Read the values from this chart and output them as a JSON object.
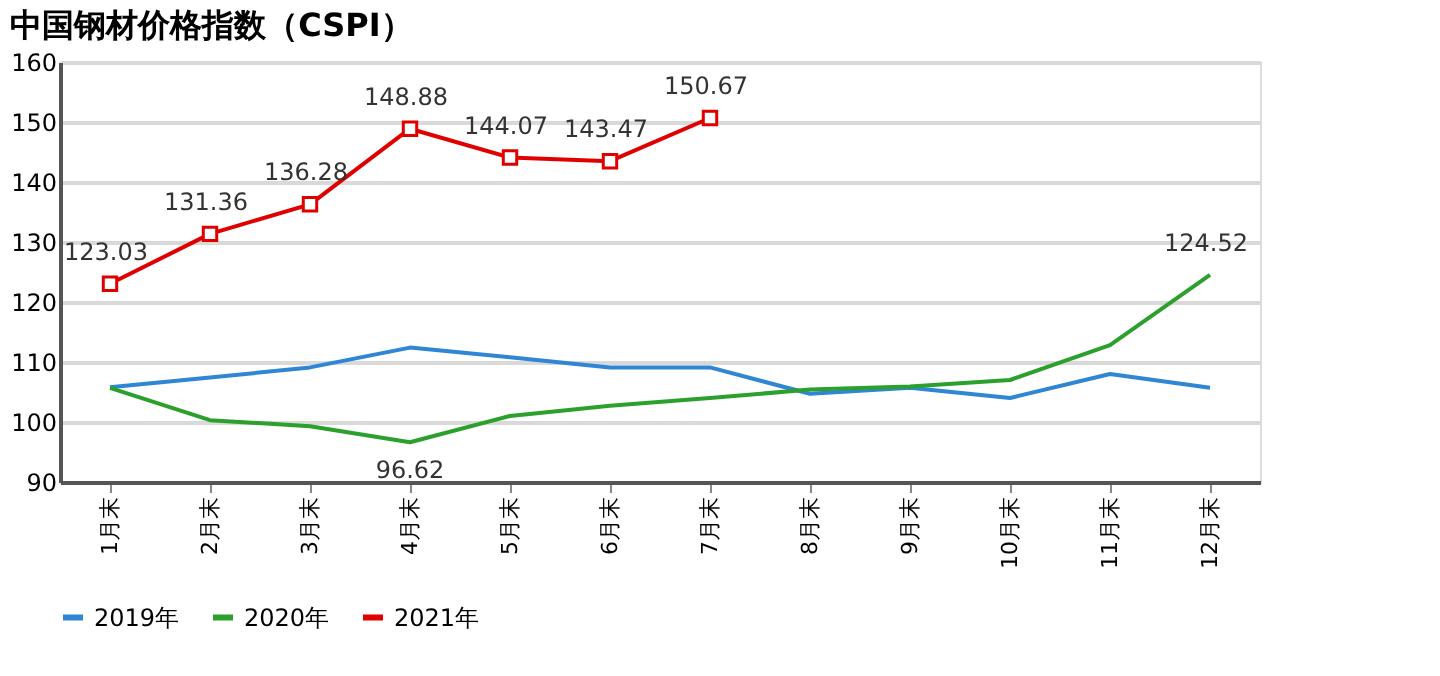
{
  "chart_data": {
    "type": "line",
    "title": "中国钢材价格指数（CSPI）",
    "categories": [
      "1月末",
      "2月末",
      "3月末",
      "4月末",
      "5月末",
      "6月末",
      "7月末",
      "8月末",
      "9月末",
      "10月末",
      "11月末",
      "12月末"
    ],
    "series": [
      {
        "name": "2019年",
        "color": "#2e86d4",
        "marker": "none",
        "values": [
          105.8,
          107.4,
          109.1,
          112.4,
          110.8,
          109.1,
          109.1,
          104.7,
          105.7,
          104.0,
          108.0,
          105.7
        ]
      },
      {
        "name": "2020年",
        "color": "#2ca02c",
        "marker": "none",
        "values": [
          105.7,
          100.3,
          99.3,
          96.62,
          101.0,
          102.7,
          104.0,
          105.4,
          105.9,
          107.0,
          112.8,
          124.52
        ],
        "value_labels": [
          null,
          null,
          null,
          "96.62",
          null,
          null,
          null,
          null,
          null,
          null,
          null,
          "124.52"
        ]
      },
      {
        "name": "2021年",
        "color": "#e00000",
        "marker": "square",
        "values": [
          123.03,
          131.36,
          136.28,
          148.88,
          144.07,
          143.47,
          150.67,
          null,
          null,
          null,
          null,
          null
        ],
        "value_labels": [
          "123.03",
          "131.36",
          "136.28",
          "148.88",
          "144.07",
          "143.47",
          "150.67",
          null,
          null,
          null,
          null,
          null
        ]
      }
    ],
    "ylim": [
      90,
      160
    ],
    "yticks": [
      90,
      100,
      110,
      120,
      130,
      140,
      150,
      160
    ],
    "grid": "y",
    "legend": "bottom"
  }
}
